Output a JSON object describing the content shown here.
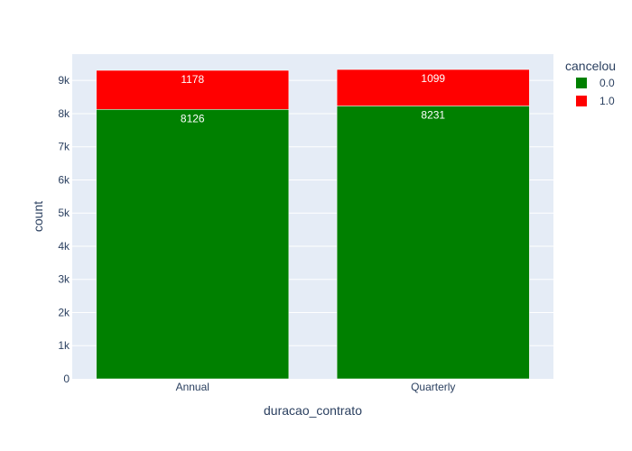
{
  "chart_data": {
    "type": "bar",
    "stacked": true,
    "categories": [
      "Annual",
      "Quarterly"
    ],
    "series": [
      {
        "name": "0.0",
        "values": [
          8126,
          8231
        ],
        "color": "#008000"
      },
      {
        "name": "1.0",
        "values": [
          1178,
          1099
        ],
        "color": "#ff0000"
      }
    ],
    "xlabel": "duracao_contrato",
    "ylabel": "count",
    "ylim": [
      0,
      9794
    ],
    "yticks": [
      0,
      1000,
      2000,
      3000,
      4000,
      5000,
      6000,
      7000,
      8000,
      9000
    ],
    "ytick_labels": [
      "0",
      "1k",
      "2k",
      "3k",
      "4k",
      "5k",
      "6k",
      "7k",
      "8k",
      "9k"
    ],
    "legend_title": "cancelou",
    "legend_position": "top-right",
    "grid": true,
    "plot_background": "#e5ecf6"
  }
}
